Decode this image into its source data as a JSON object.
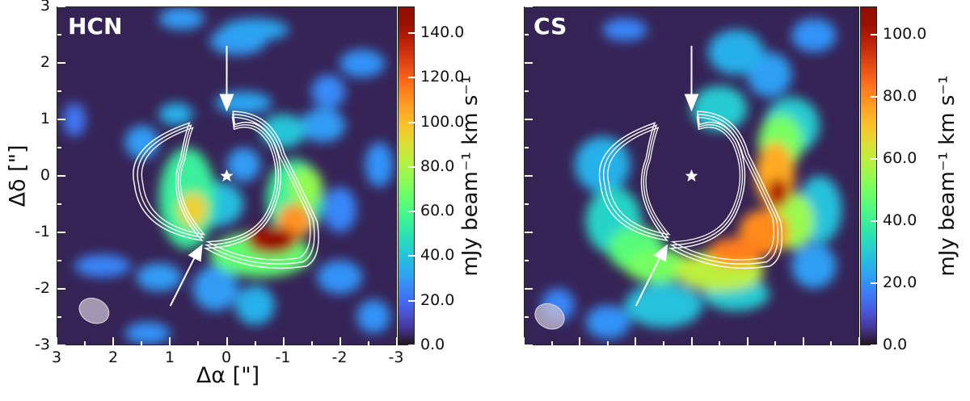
{
  "chart_data": [
    {
      "type": "heatmap",
      "title": "HCN",
      "xlabel": "Δα [\"]",
      "ylabel": "Δδ [\"]",
      "xlim": [
        3,
        -3
      ],
      "ylim": [
        -3,
        3
      ],
      "xticks": [
        "3",
        "2",
        "1",
        "0",
        "-1",
        "-2",
        "-3"
      ],
      "yticks": [
        "3",
        "2",
        "1",
        "0",
        "-1",
        "-2",
        "-3"
      ],
      "colorbar": {
        "label": "mJy beam⁻¹ km s⁻¹",
        "range": [
          0,
          152
        ],
        "ticks": [
          "140.0",
          "120.0",
          "100.0",
          "80.0",
          "60.0",
          "40.0",
          "20.0",
          "0.0"
        ],
        "tick_values": [
          140,
          120,
          100,
          80,
          60,
          40,
          20,
          0
        ]
      },
      "emission": [
        [
          -0.2,
          2.4,
          0.5,
          0.25,
          30
        ],
        [
          -0.5,
          2.6,
          0.6,
          0.2,
          32
        ],
        [
          0.8,
          2.8,
          0.4,
          0.2,
          30
        ],
        [
          -2.4,
          2.0,
          0.4,
          0.25,
          28
        ],
        [
          -1.8,
          1.5,
          0.3,
          0.3,
          26
        ],
        [
          0.9,
          1.1,
          0.3,
          0.2,
          35
        ],
        [
          1.5,
          0.6,
          0.3,
          0.3,
          30
        ],
        [
          -0.3,
          1.3,
          0.5,
          0.2,
          32
        ],
        [
          -1.0,
          0.8,
          0.4,
          0.3,
          40
        ],
        [
          -1.7,
          0.9,
          0.4,
          0.3,
          30
        ],
        [
          2.7,
          1.0,
          0.2,
          0.3,
          22
        ],
        [
          -2.7,
          0.2,
          0.25,
          0.4,
          28
        ],
        [
          -2.0,
          -0.6,
          0.3,
          0.4,
          25
        ],
        [
          2.2,
          -1.6,
          0.5,
          0.2,
          25
        ],
        [
          1.2,
          -1.8,
          0.4,
          0.25,
          30
        ],
        [
          -0.5,
          -2.3,
          0.35,
          0.35,
          35
        ],
        [
          -2.0,
          -1.8,
          0.4,
          0.3,
          28
        ],
        [
          -2.6,
          -2.5,
          0.3,
          0.3,
          28
        ],
        [
          1.4,
          -2.8,
          0.4,
          0.2,
          28
        ],
        [
          0.2,
          -2.0,
          0.4,
          0.4,
          30
        ],
        [
          0.2,
          -0.5,
          0.5,
          0.4,
          38
        ],
        [
          -0.3,
          0.2,
          0.3,
          0.3,
          30
        ],
        [
          0.7,
          -0.4,
          0.5,
          0.9,
          55
        ],
        [
          -1.2,
          -0.4,
          0.5,
          0.7,
          55
        ],
        [
          -0.6,
          -1.4,
          0.9,
          0.4,
          65
        ],
        [
          -1.4,
          -0.2,
          0.3,
          0.35,
          75
        ],
        [
          0.6,
          -0.6,
          0.25,
          0.3,
          95
        ],
        [
          -1.2,
          -0.8,
          0.3,
          0.3,
          110
        ],
        [
          -0.8,
          -1.15,
          0.45,
          0.25,
          140
        ],
        [
          -0.85,
          -1.15,
          0.22,
          0.15,
          152
        ],
        [
          0.0,
          -0.5,
          0.25,
          0.25,
          0
        ]
      ],
      "beam": {
        "ra": 2.35,
        "dec": -2.4
      }
    },
    {
      "type": "heatmap",
      "title": "CS",
      "xlim": [
        3,
        -3
      ],
      "ylim": [
        -3,
        3
      ],
      "colorbar": {
        "label": "mJy beam⁻¹ km s⁻¹",
        "range": [
          0,
          109
        ],
        "ticks": [
          "100.0",
          "80.0",
          "60.0",
          "40.0",
          "20.0",
          "0.0"
        ],
        "tick_values": [
          100,
          80,
          60,
          40,
          20,
          0
        ]
      },
      "emission": [
        [
          -0.8,
          2.2,
          0.5,
          0.4,
          25
        ],
        [
          -1.4,
          1.8,
          0.4,
          0.4,
          22
        ],
        [
          -2.2,
          2.5,
          0.4,
          0.3,
          20
        ],
        [
          1.2,
          2.6,
          0.4,
          0.2,
          18
        ],
        [
          -0.5,
          1.2,
          0.5,
          0.4,
          30
        ],
        [
          -1.8,
          0.9,
          0.5,
          0.5,
          30
        ],
        [
          1.6,
          0.2,
          0.5,
          0.5,
          25
        ],
        [
          1.4,
          -0.8,
          0.5,
          0.6,
          32
        ],
        [
          -2.3,
          -0.6,
          0.4,
          0.6,
          28
        ],
        [
          -2.2,
          -1.6,
          0.4,
          0.4,
          22
        ],
        [
          0.5,
          -2.3,
          0.7,
          0.4,
          28
        ],
        [
          -0.8,
          -2.1,
          0.6,
          0.3,
          30
        ],
        [
          2.4,
          -2.3,
          0.3,
          0.3,
          18
        ],
        [
          1.5,
          -2.6,
          0.4,
          0.3,
          20
        ],
        [
          1.0,
          -1.3,
          0.5,
          0.4,
          45
        ],
        [
          0.6,
          -1.6,
          0.6,
          0.3,
          50
        ],
        [
          -1.6,
          0.6,
          0.4,
          0.5,
          50
        ],
        [
          -1.8,
          -0.8,
          0.4,
          0.5,
          55
        ],
        [
          -0.5,
          -1.7,
          0.8,
          0.35,
          60
        ],
        [
          -1.5,
          0.0,
          0.35,
          0.6,
          75
        ],
        [
          -1.3,
          -1.0,
          0.45,
          0.4,
          80
        ],
        [
          -0.8,
          -1.35,
          0.5,
          0.25,
          82
        ],
        [
          -1.55,
          -0.3,
          0.2,
          0.25,
          100
        ]
      ],
      "beam": {
        "ra": 2.55,
        "dec": -2.5
      }
    }
  ]
}
